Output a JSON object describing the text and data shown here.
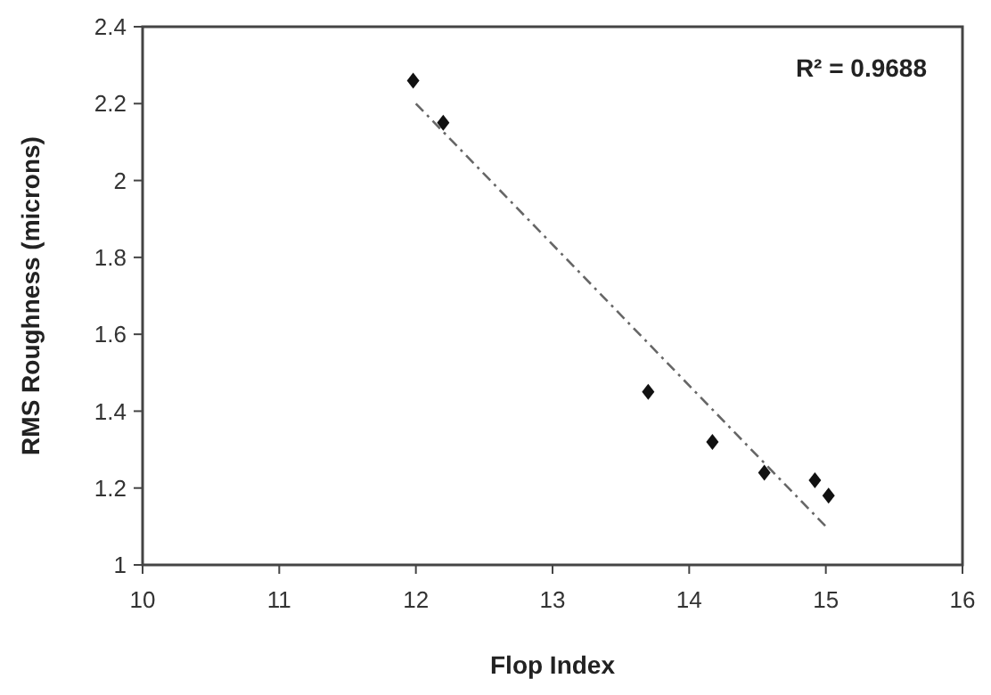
{
  "chart_data": {
    "type": "scatter",
    "xlabel": "Flop Index",
    "ylabel": "RMS Roughness (microns)",
    "xlim": [
      10,
      16
    ],
    "xticks": [
      10,
      11,
      12,
      13,
      14,
      15,
      16
    ],
    "ylim": [
      1,
      2.4
    ],
    "yticks": [
      1,
      1.2,
      1.4,
      1.6,
      1.8,
      2,
      2.2,
      2.4
    ],
    "grid": false,
    "marker": "diamond",
    "series": [
      {
        "color": "#111111",
        "x": [
          11.98,
          12.2,
          13.7,
          14.17,
          14.55,
          14.92,
          15.02
        ],
        "values": [
          2.26,
          2.15,
          1.45,
          1.32,
          1.24,
          1.22,
          1.18
        ]
      },
      {
        "type": "line",
        "color": "#666666",
        "line_style": "dashdot",
        "marker": "none",
        "x": [
          12,
          15
        ],
        "values": [
          2.2,
          1.1
        ]
      }
    ],
    "annotations": [
      "R² = 0.9688"
    ]
  }
}
